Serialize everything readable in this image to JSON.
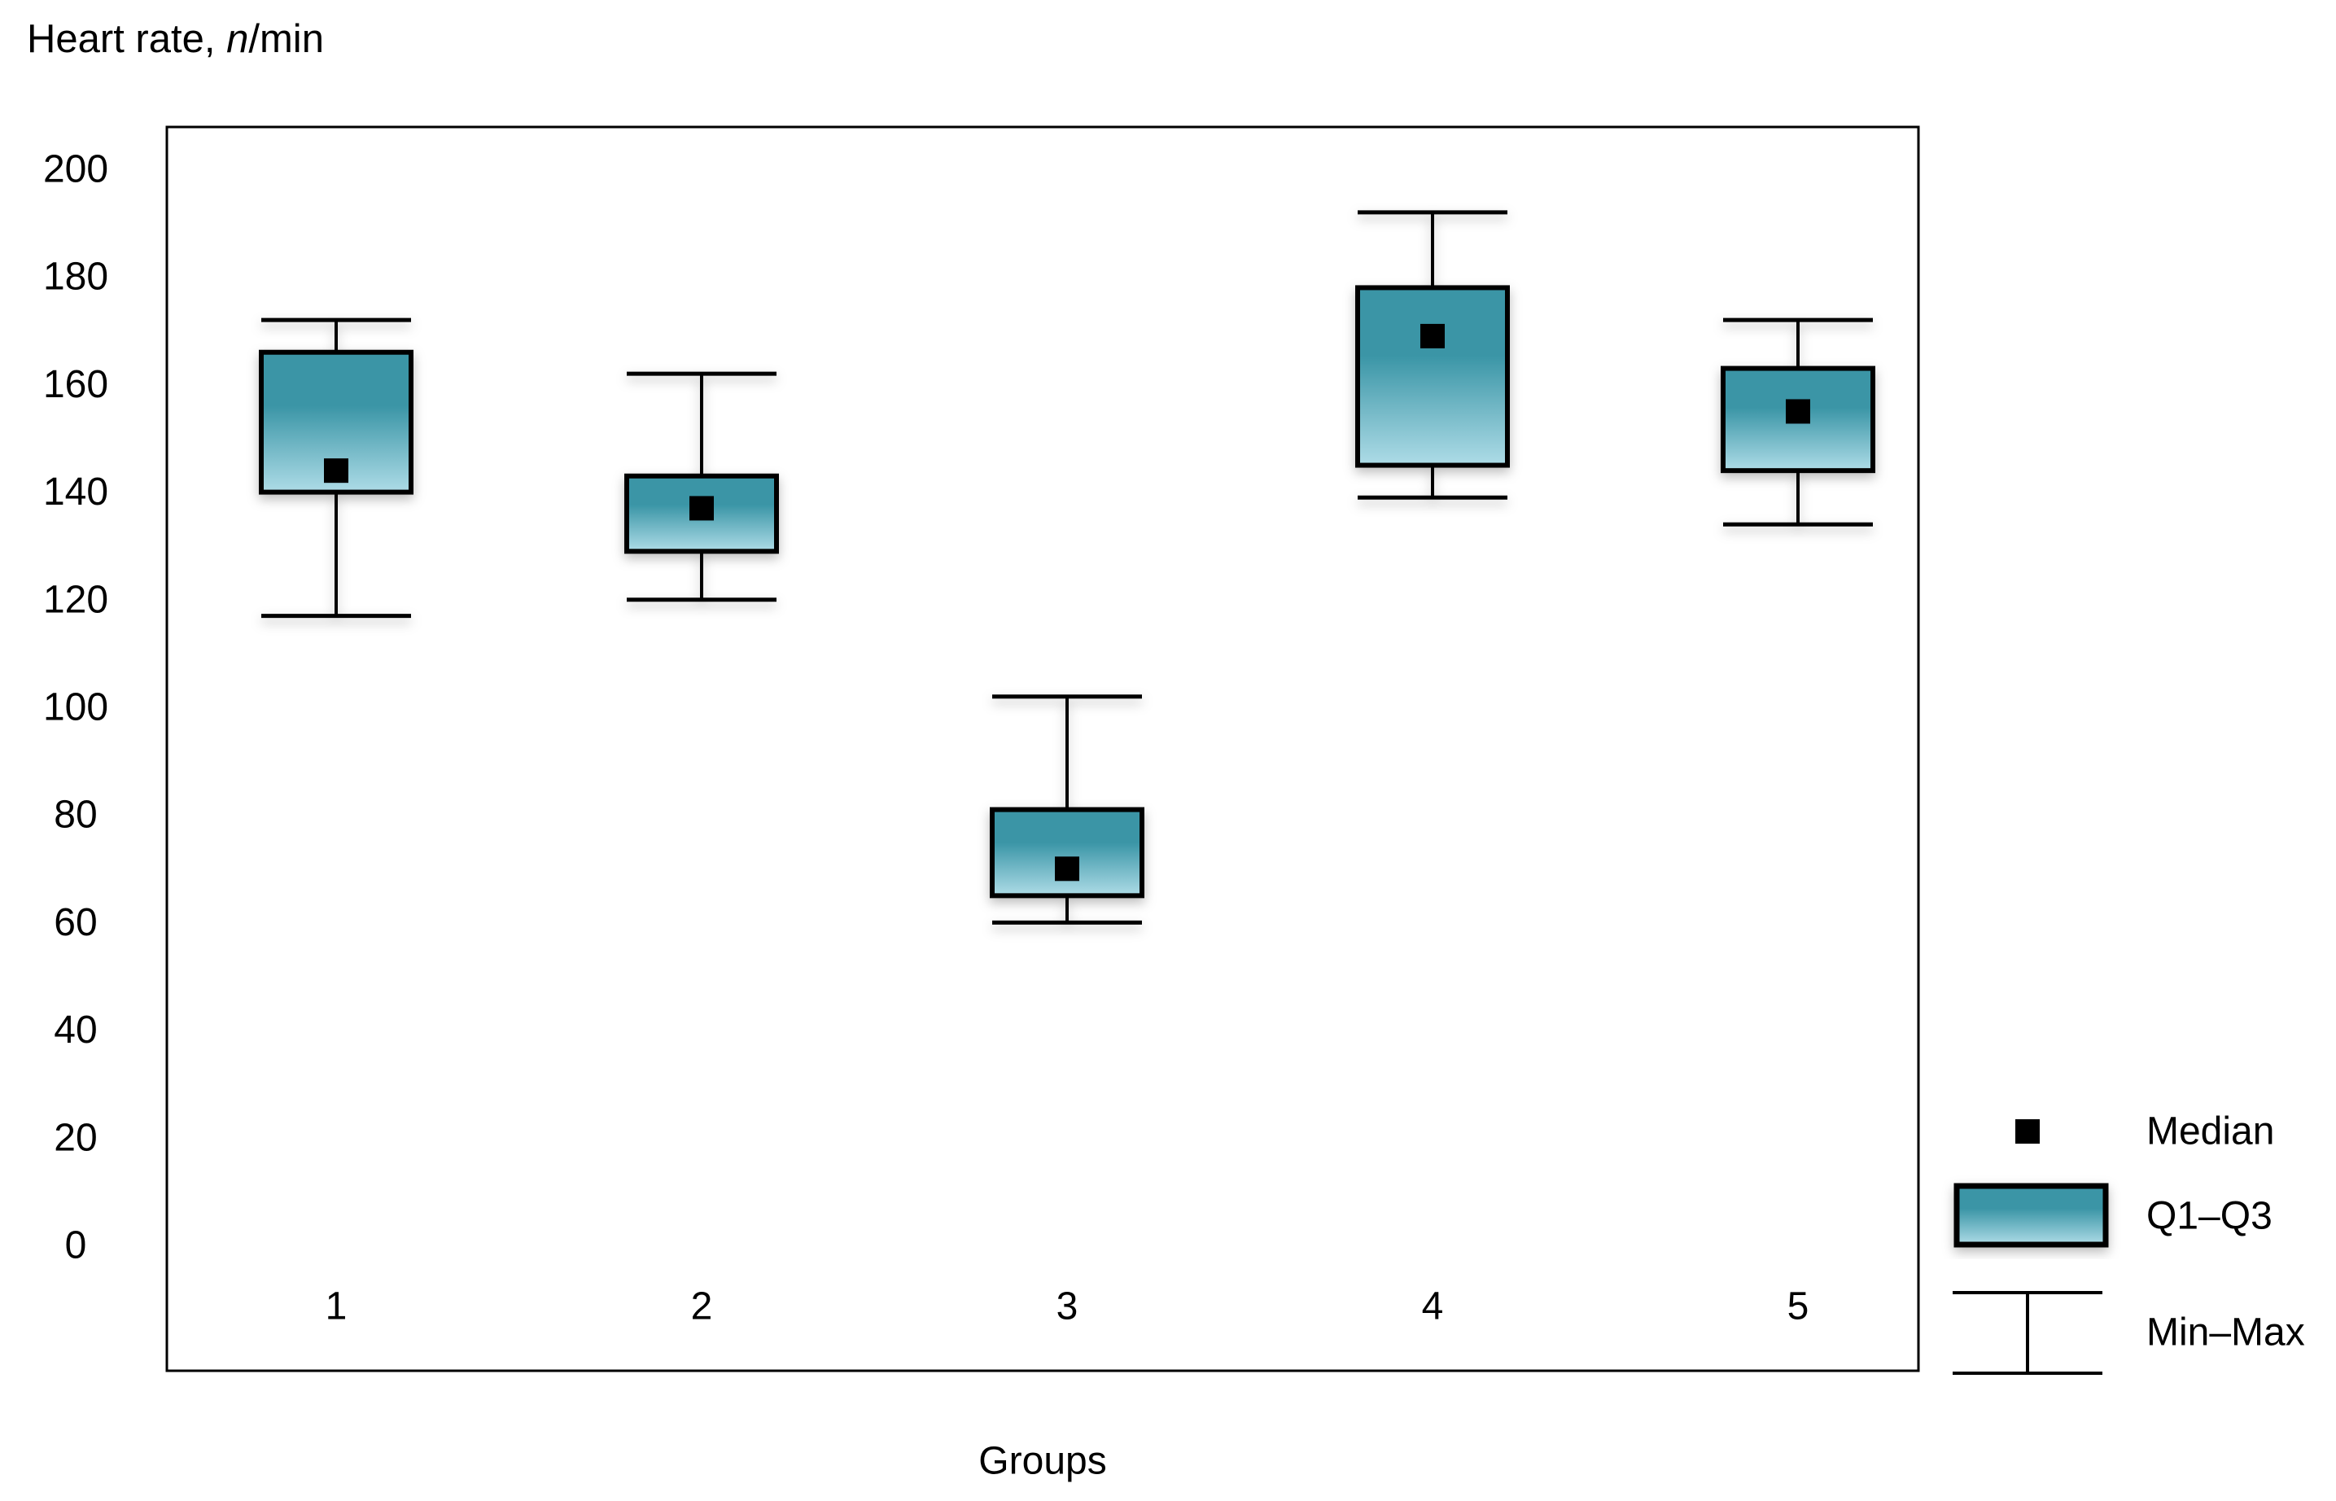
{
  "chart_data": {
    "type": "boxplot",
    "title": {
      "prefix": "Heart rate, ",
      "italic_var": "n",
      "suffix": "/min"
    },
    "xlabel": "Groups",
    "ylim": [
      0,
      200
    ],
    "ytick_step": 20,
    "yticks": [
      0,
      20,
      40,
      60,
      80,
      100,
      120,
      140,
      160,
      180,
      200
    ],
    "categories": [
      "1",
      "2",
      "3",
      "4",
      "5"
    ],
    "series": [
      {
        "group": "1",
        "min": 117,
        "q1": 140,
        "median": 144,
        "q3": 166,
        "max": 172
      },
      {
        "group": "2",
        "min": 120,
        "q1": 129,
        "median": 137,
        "q3": 143,
        "max": 162
      },
      {
        "group": "3",
        "min": 60,
        "q1": 65,
        "median": 70,
        "q3": 81,
        "max": 102
      },
      {
        "group": "4",
        "min": 139,
        "q1": 145,
        "median": 169,
        "q3": 178,
        "max": 192
      },
      {
        "group": "5",
        "min": 134,
        "q1": 144,
        "median": 155,
        "q3": 163,
        "max": 172
      }
    ],
    "legend": [
      {
        "symbol": "median-square",
        "label": "Median"
      },
      {
        "symbol": "iqr-box",
        "label": "Q1–Q3"
      },
      {
        "symbol": "minmax-whisker",
        "label": "Min–Max"
      }
    ],
    "grid": false,
    "legend_position": "bottom-right-outside",
    "colors": {
      "box_top": "#3A95A6",
      "box_bottom": "#AEDCE7",
      "box_border": "#000000",
      "median_marker": "#000000",
      "whisker": "#000000",
      "frame": "#000000",
      "text": "#000000",
      "background": "#FFFFFF"
    }
  }
}
